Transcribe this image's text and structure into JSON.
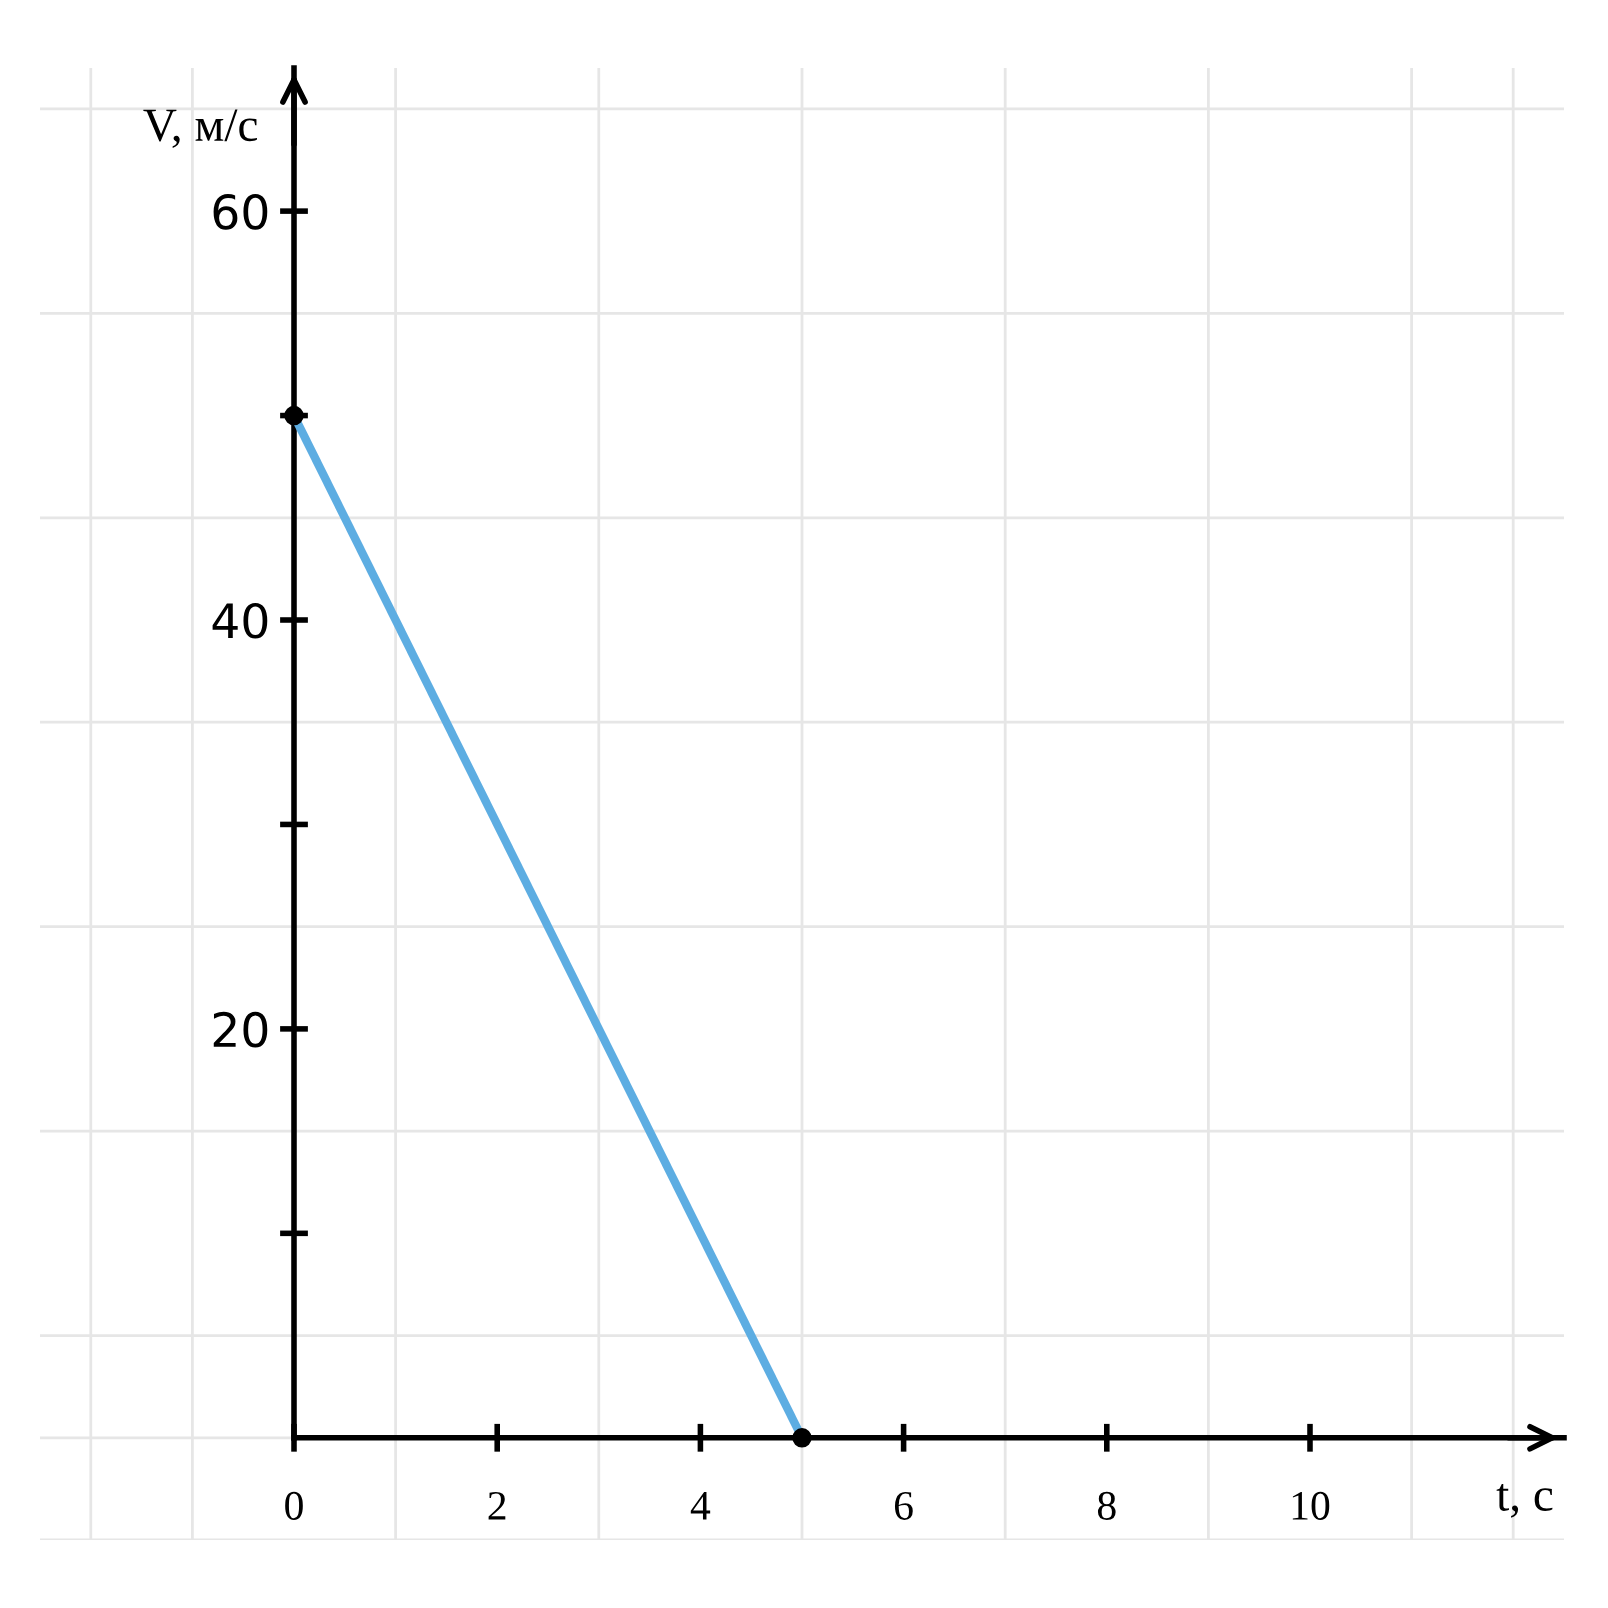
{
  "chart_data": {
    "type": "line",
    "xlabel": "t, с",
    "ylabel": "V, м/с",
    "x": [
      0,
      5
    ],
    "series": [
      {
        "color": "#5dade2",
        "values": [
          50,
          0
        ]
      }
    ],
    "marker": "circle",
    "line_style": "solid",
    "grid": true,
    "xlim": [
      -2.5,
      12.5
    ],
    "ylim": [
      -5,
      67
    ],
    "xticks": [
      0,
      2,
      4,
      6,
      8,
      10
    ],
    "yticks": [
      {
        "value": 10,
        "label": null
      },
      20,
      {
        "value": 30,
        "label": null
      },
      40,
      {
        "value": 50,
        "label": null
      },
      60
    ]
  }
}
